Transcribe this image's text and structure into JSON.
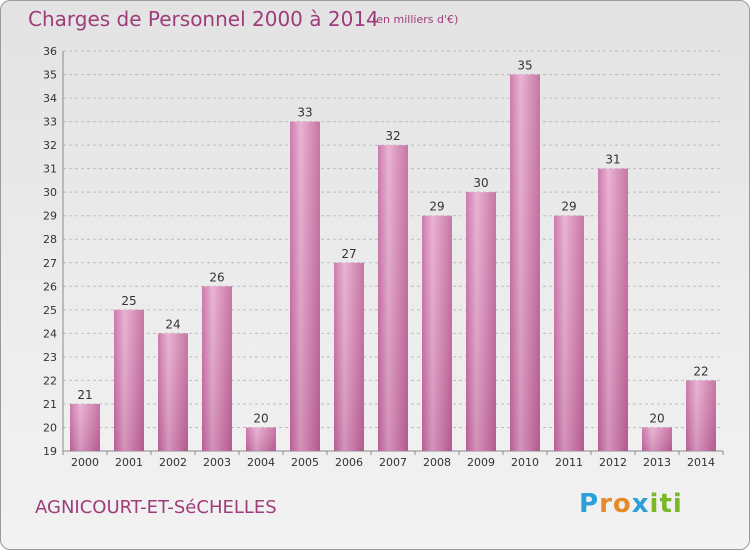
{
  "title": "Charges de Personnel 2000 à 2014",
  "subtitle": "(en milliers d'€)",
  "commune": "AGNICOURT-ET-SéCHELLES",
  "logo": {
    "letters": [
      "P",
      "r",
      "o",
      "x",
      "i",
      "t",
      "i"
    ],
    "colors": [
      "#2a9fd8",
      "#e8892a",
      "#e8892a",
      "#2a9fd8",
      "#7ab829",
      "#7ab829",
      "#7ab829"
    ]
  },
  "colors": {
    "bar": "#d37eb0",
    "title": "#9e3d79"
  },
  "chart_data": {
    "type": "bar",
    "categories": [
      "2000",
      "2001",
      "2002",
      "2003",
      "2004",
      "2005",
      "2006",
      "2007",
      "2008",
      "2009",
      "2010",
      "2011",
      "2012",
      "2013",
      "2014"
    ],
    "values": [
      21,
      25,
      24,
      26,
      20,
      33,
      27,
      32,
      29,
      30,
      35,
      29,
      31,
      20,
      22
    ],
    "ylim": [
      19,
      36
    ],
    "yticks": [
      19,
      20,
      21,
      22,
      23,
      24,
      25,
      26,
      27,
      28,
      29,
      30,
      31,
      32,
      33,
      34,
      35,
      36
    ],
    "grid": true,
    "xlabel": "",
    "ylabel": ""
  }
}
